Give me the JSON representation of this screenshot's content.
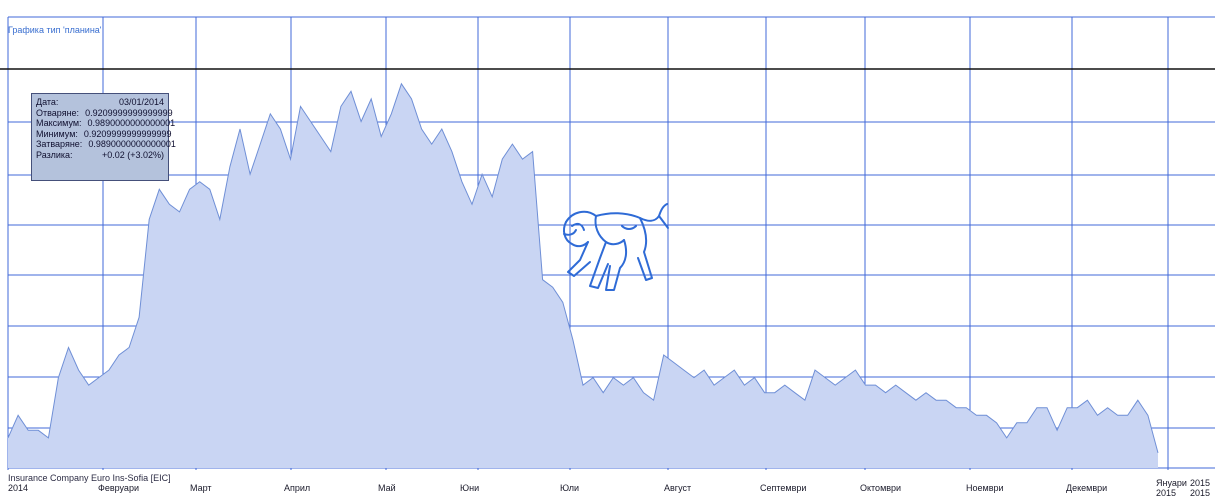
{
  "chart_data": {
    "type": "area",
    "title": "Графика тип 'планина'",
    "xlabel": "",
    "ylabel": "",
    "x_tick_labels": [
      "2014",
      "Февруари",
      "Март",
      "Април",
      "Май",
      "Юни",
      "Юли",
      "Август",
      "Септември",
      "Октомври",
      "Ноември",
      "Декември",
      "Януари",
      "2015"
    ],
    "x_tick_labels_secondary": [
      "2015",
      "2015"
    ],
    "grid": true,
    "legend": "none",
    "y_axis_labels_visible": false,
    "series": [
      {
        "values": [
          0.79,
          0.82,
          0.8,
          0.8,
          0.79,
          0.87,
          0.91,
          0.88,
          0.86,
          0.87,
          0.88,
          0.9,
          0.91,
          0.95,
          1.08,
          1.12,
          1.1,
          1.09,
          1.12,
          1.13,
          1.12,
          1.08,
          1.15,
          1.2,
          1.14,
          1.18,
          1.22,
          1.2,
          1.16,
          1.23,
          1.21,
          1.19,
          1.17,
          1.23,
          1.25,
          1.21,
          1.24,
          1.19,
          1.22,
          1.26,
          1.24,
          1.2,
          1.18,
          1.2,
          1.17,
          1.13,
          1.1,
          1.14,
          1.11,
          1.16,
          1.18,
          1.16,
          1.17,
          1.0,
          0.99,
          0.97,
          0.92,
          0.86,
          0.87,
          0.85,
          0.87,
          0.86,
          0.87,
          0.85,
          0.84,
          0.9,
          0.89,
          0.88,
          0.87,
          0.88,
          0.86,
          0.87,
          0.88,
          0.86,
          0.87,
          0.85,
          0.85,
          0.86,
          0.85,
          0.84,
          0.88,
          0.87,
          0.86,
          0.87,
          0.88,
          0.86,
          0.86,
          0.85,
          0.86,
          0.85,
          0.84,
          0.85,
          0.84,
          0.84,
          0.83,
          0.83,
          0.82,
          0.82,
          0.81,
          0.79,
          0.81,
          0.81,
          0.83,
          0.83,
          0.8,
          0.83,
          0.83,
          0.84,
          0.82,
          0.83,
          0.82,
          0.82,
          0.84,
          0.82,
          0.77
        ]
      }
    ],
    "ylim": [
      0.75,
      1.35
    ],
    "data_start": "2014-01-02",
    "data_end": "2015-01-02"
  },
  "tooltip": {
    "rows": [
      {
        "label": "Дата:",
        "value": "03/01/2014"
      },
      {
        "label": "Отваряне:",
        "value": "0.9209999999999999"
      },
      {
        "label": "Максимум:",
        "value": "0.9890000000000001"
      },
      {
        "label": "Минимум:",
        "value": "0.9209999999999999"
      },
      {
        "label": "Затваряне:",
        "value": "0.9890000000000001"
      },
      {
        "label": "Разлика:",
        "value": "+0.02 (+3.02%)"
      }
    ]
  },
  "watermark": "Insurance Company Euro Ins-Sofia [EIC]",
  "colors": {
    "area_fill": "#c9d5f3",
    "area_line": "#6f8fd6",
    "grid": "#4169d8",
    "ref_line": "#111111",
    "logo": "#2f6bd6"
  }
}
